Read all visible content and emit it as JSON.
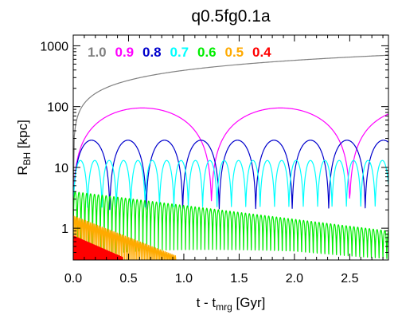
{
  "chart_data": {
    "type": "line",
    "title": "q0.5fg0.1a",
    "xlabel": {
      "main": "t - t",
      "sub": "mrg",
      "unit": " [Gyr]"
    },
    "ylabel": {
      "main": "R",
      "sub": "BH",
      "unit": " [kpc]"
    },
    "xlim": [
      0.0,
      2.85
    ],
    "ylim": [
      0.3,
      1500
    ],
    "yscale": "log",
    "xticks": [
      0.0,
      0.5,
      1.0,
      1.5,
      2.0,
      2.5
    ],
    "xtick_labels": [
      "0.0",
      "0.5",
      "1.0",
      "1.5",
      "2.0",
      "2.5"
    ],
    "yticks": [
      1,
      10,
      100,
      1000
    ],
    "ytick_labels": [
      "1",
      "10",
      "100",
      "1000"
    ],
    "grid": false,
    "legend_position": "top-left",
    "series": [
      {
        "name": "1.0",
        "color": "#808080",
        "kind": "monotonic",
        "start": 2.5,
        "end": 700,
        "t_end": 2.85
      },
      {
        "name": "0.9",
        "color": "#ff00ff",
        "kind": "oscillation",
        "period": 1.25,
        "amp": 95,
        "min": 2.5,
        "t_end": 2.85
      },
      {
        "name": "0.8",
        "color": "#0000cc",
        "kind": "oscillation",
        "period": 0.33,
        "amp": 28,
        "min": 2.0,
        "t_end": 2.85
      },
      {
        "name": "0.7",
        "color": "#00ffff",
        "kind": "oscillation",
        "period": 0.13,
        "amp": 13,
        "min": 2.2,
        "t_end": 2.85
      },
      {
        "name": "0.6",
        "color": "#00ee00",
        "kind": "decay",
        "period": 0.035,
        "amp_start": 4.0,
        "amp_end": 0.9,
        "min": 0.25,
        "t_end": 2.85
      },
      {
        "name": "0.5",
        "color": "#ffaa00",
        "kind": "decay",
        "period": 0.015,
        "amp_start": 1.6,
        "amp_end": 0.35,
        "min": 0.2,
        "t_end": 0.93
      },
      {
        "name": "0.4",
        "color": "#ff0000",
        "kind": "decay",
        "period": 0.008,
        "amp_start": 0.75,
        "amp_end": 0.33,
        "min": 0.2,
        "t_end": 0.45
      }
    ]
  }
}
